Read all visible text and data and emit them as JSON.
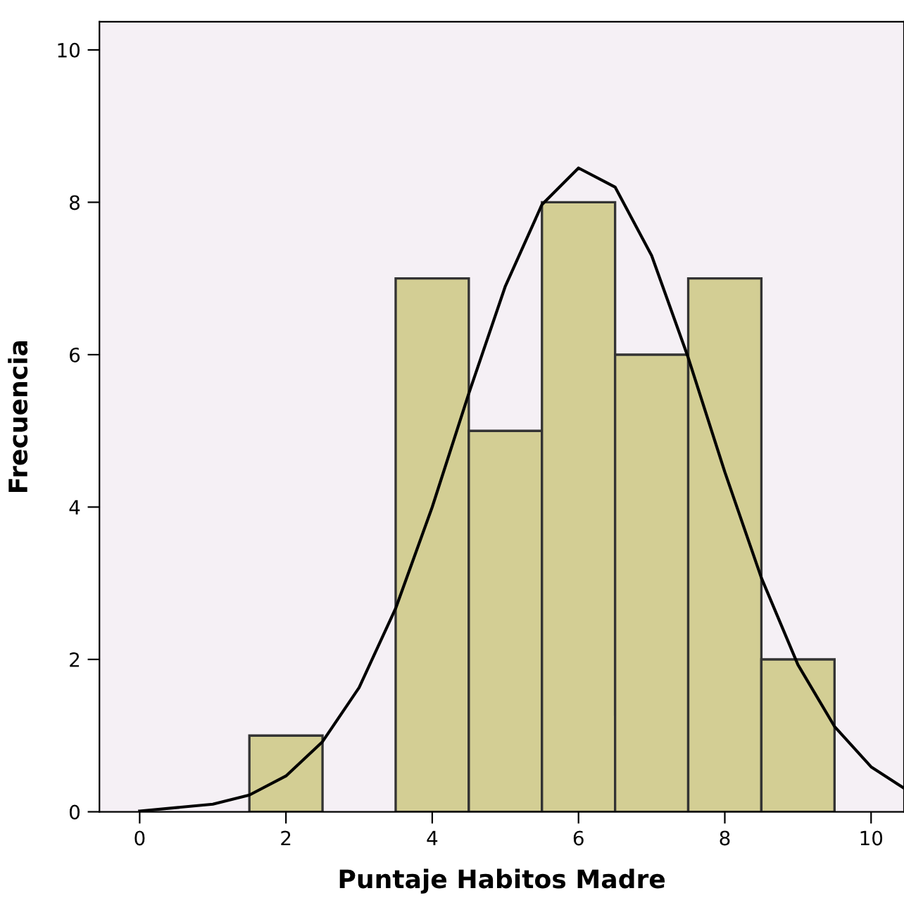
{
  "chart_data": {
    "type": "histogram",
    "xlabel": "Puntaje Habitos Madre",
    "ylabel": "Frecuencia",
    "bins": [
      1.5,
      2.5,
      3.5,
      4.5,
      5.5,
      6.5,
      7.5,
      8.5,
      9.5
    ],
    "values": [
      1,
      0,
      7,
      5,
      8,
      6,
      7,
      2
    ],
    "color": "#d3ce94",
    "series": [
      {
        "type": "line",
        "color": "#000000",
        "x": [
          0,
          1,
          1.5,
          2,
          2.5,
          3,
          3.5,
          4,
          4.5,
          5,
          5.5,
          6,
          6.5,
          7,
          7.5,
          8,
          8.5,
          9,
          9.5,
          10,
          10.45
        ],
        "values": [
          0.01,
          0.1,
          0.22,
          0.47,
          0.92,
          1.63,
          2.67,
          4.0,
          5.49,
          6.9,
          7.97,
          8.45,
          8.2,
          7.3,
          5.96,
          4.46,
          3.07,
          1.93,
          1.12,
          0.59,
          0.31
        ]
      }
    ],
    "xlim": [
      -0.55,
      10.45
    ],
    "ylim": [
      0,
      10.37
    ],
    "xticks": [
      0,
      2,
      4,
      6,
      8,
      10
    ],
    "yticks": [
      0,
      2,
      4,
      6,
      8,
      10
    ],
    "grid": false
  }
}
